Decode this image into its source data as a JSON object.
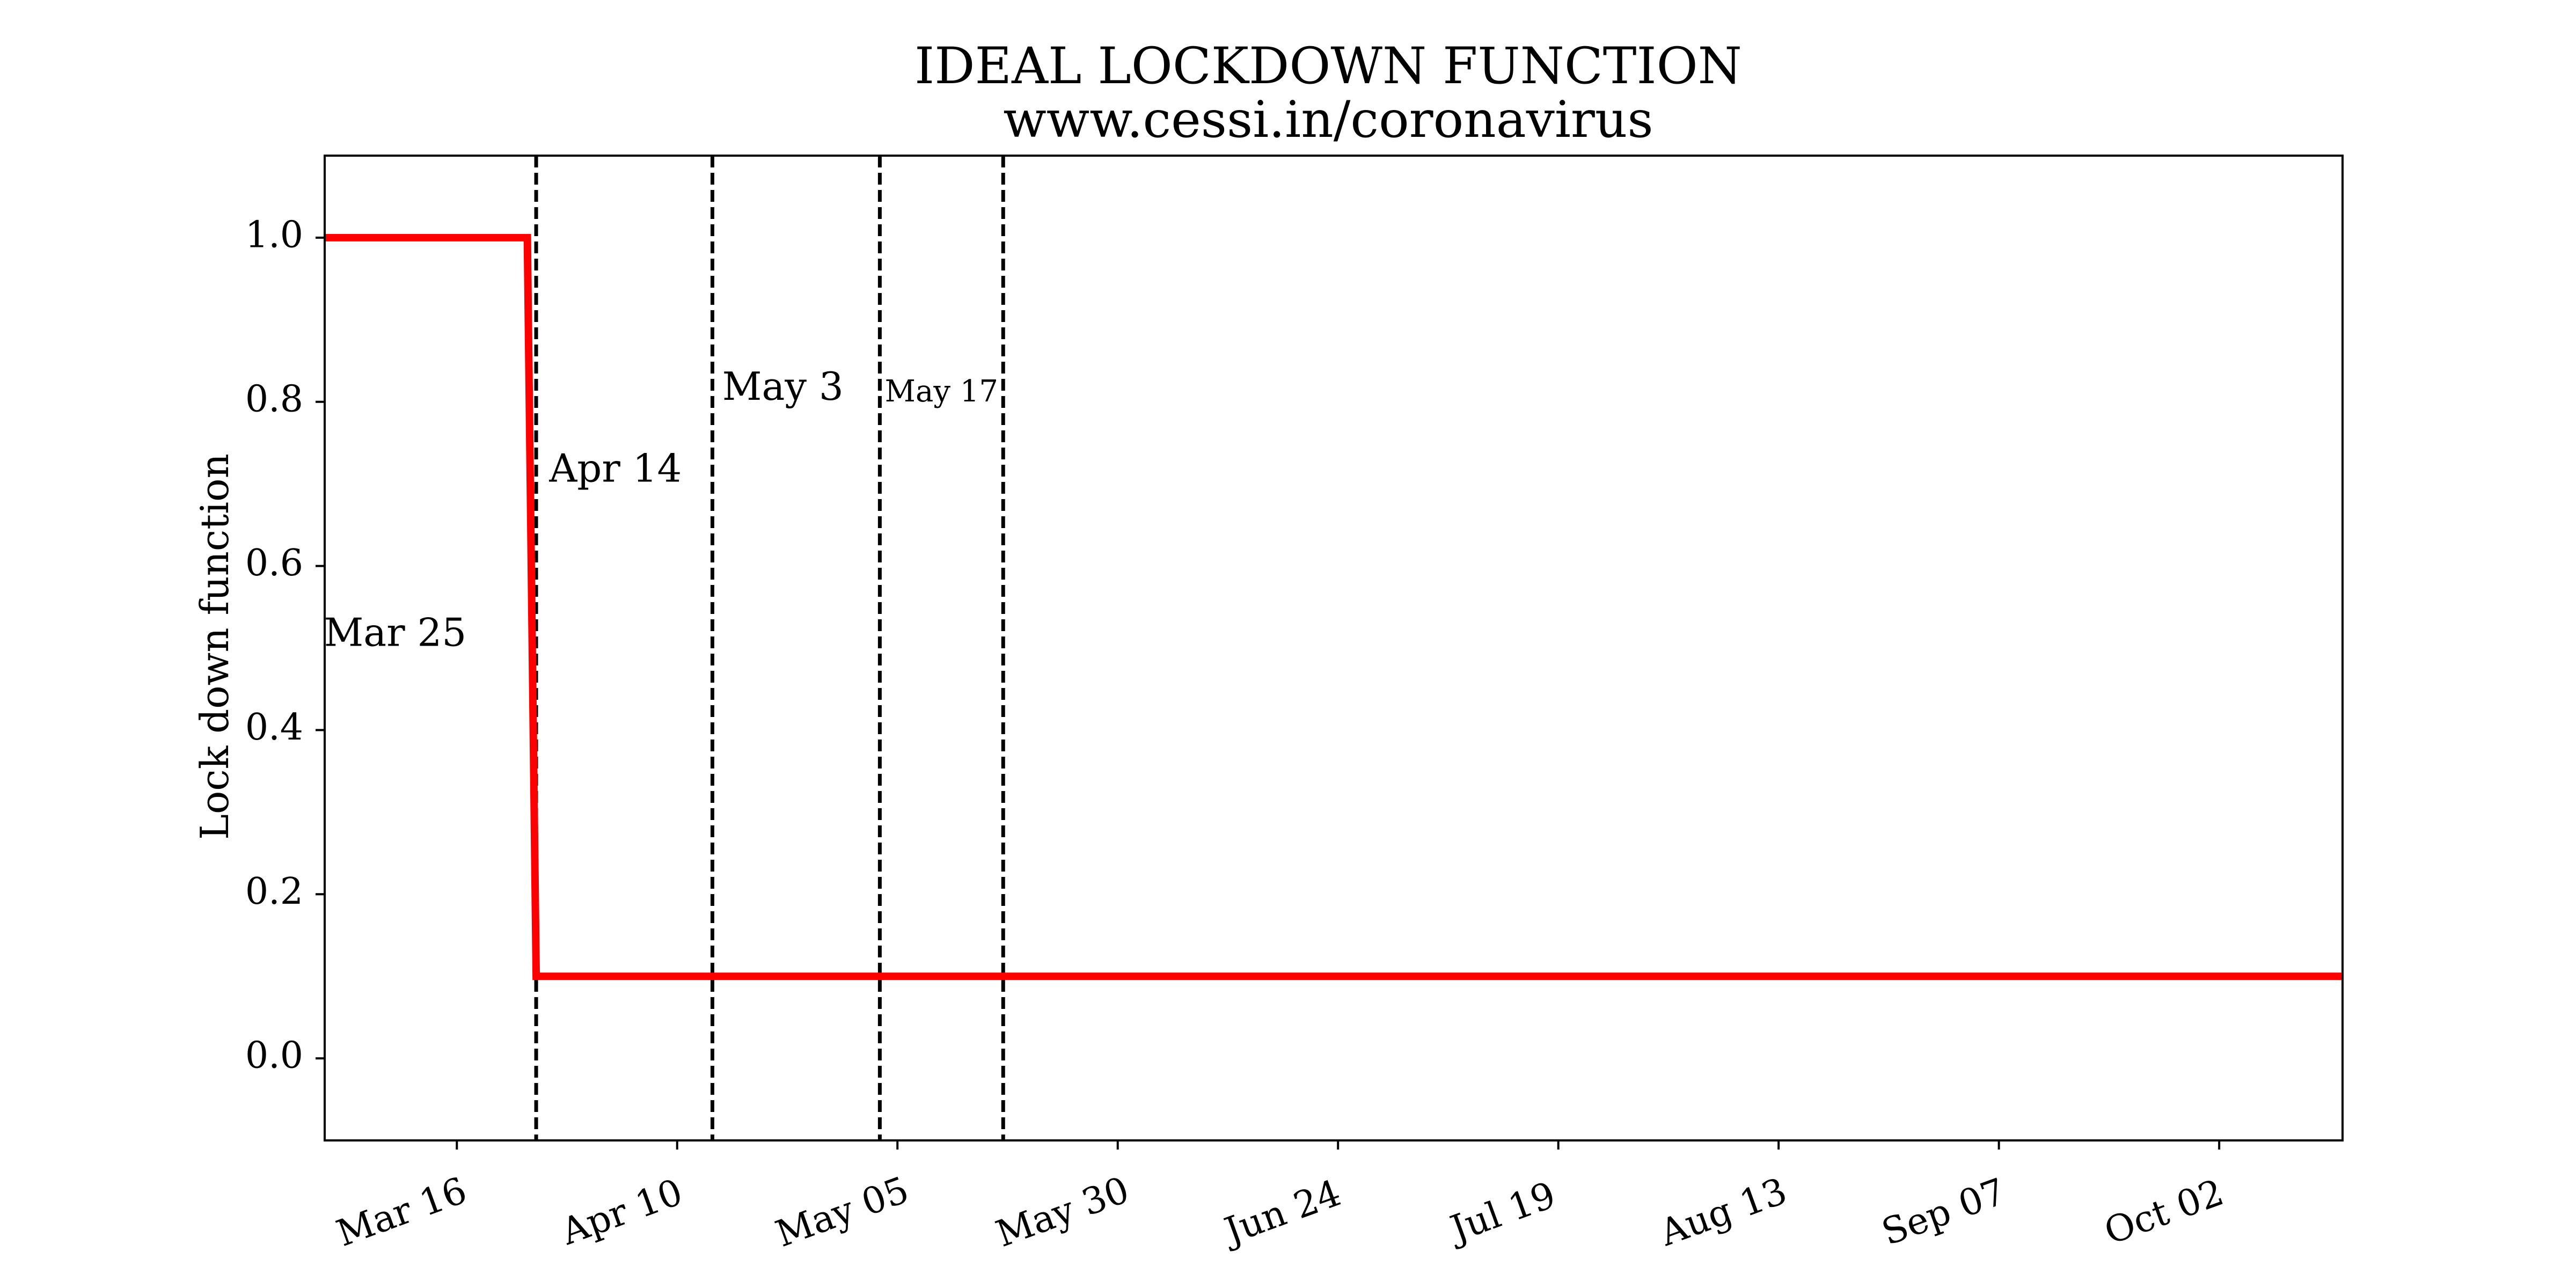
{
  "chart_data": {
    "type": "line",
    "title": "IDEAL LOCKDOWN FUNCTION",
    "subtitle": "www.cessi.in/coronavirus",
    "xlabel": "",
    "ylabel": "Lock down function",
    "xlim": [
      "2020-03-01",
      "2020-10-16"
    ],
    "ylim": [
      -0.1,
      1.1
    ],
    "x_ticks": [
      "2020-03-16",
      "2020-04-10",
      "2020-05-05",
      "2020-05-30",
      "2020-06-24",
      "2020-07-19",
      "2020-08-13",
      "2020-09-07",
      "2020-10-02"
    ],
    "x_tick_labels": [
      "Mar 16",
      "Apr 10",
      "May 05",
      "May 30",
      "Jun 24",
      "Jul 19",
      "Aug 13",
      "Sep 07",
      "Oct 02"
    ],
    "y_ticks": [
      0.0,
      0.2,
      0.4,
      0.6,
      0.8,
      1.0
    ],
    "y_tick_labels": [
      "0.0",
      "0.2",
      "0.4",
      "0.6",
      "0.8",
      "1.0"
    ],
    "grid": false,
    "series": [
      {
        "color": "#ff0000",
        "points": [
          {
            "x": "2020-03-01",
            "y": 1.0
          },
          {
            "x": "2020-03-24",
            "y": 1.0
          },
          {
            "x": "2020-03-25",
            "y": 0.1
          },
          {
            "x": "2020-10-16",
            "y": 0.1
          }
        ]
      }
    ],
    "vlines": [
      "2020-03-25",
      "2020-04-14",
      "2020-05-03",
      "2020-05-17"
    ],
    "vline_style": "dashed",
    "vline_color": "#000000",
    "annotations": [
      {
        "text": "Mar 25",
        "x": "2020-03-09",
        "y": 0.515,
        "size": "large"
      },
      {
        "text": "Apr 14",
        "x": "2020-04-03",
        "y": 0.715,
        "size": "large"
      },
      {
        "text": "May 3",
        "x": "2020-04-22",
        "y": 0.815,
        "size": "large"
      },
      {
        "text": "May 17",
        "x": "2020-05-10",
        "y": 0.81,
        "size": "small"
      }
    ]
  }
}
